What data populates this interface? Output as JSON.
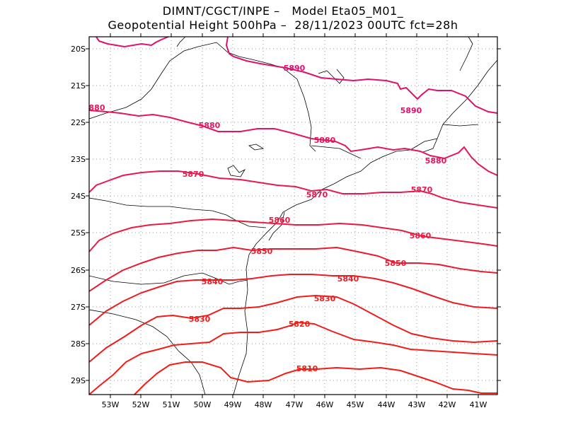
{
  "title": {
    "line1": "DIMNT/CGCT/INPE –   Model Eta05_M01_",
    "line2": "Geopotential Height 500hPa –  28/11/2023 00UTC fct=28h"
  },
  "axes": {
    "lat_labels": [
      "20S",
      "21S",
      "22S",
      "23S",
      "24S",
      "25S",
      "26S",
      "27S",
      "28S",
      "29S"
    ],
    "lon_labels": [
      "53W",
      "52W",
      "51W",
      "50W",
      "49W",
      "48W",
      "47W",
      "46W",
      "45W",
      "44W",
      "43W",
      "42W",
      "41W"
    ]
  },
  "colors": {
    "c5890": "#e0106e",
    "c5880": "#e51560",
    "c5870": "#e81850",
    "c5860": "#ea1a40",
    "c5850": "#ec1a30",
    "c5840": "#ee1b25",
    "c5830": "#f01c1c",
    "c5820": "#f21c18",
    "c5810": "#f31c14",
    "coast": "#000000",
    "grid": "#999999"
  },
  "contours": [
    {
      "level": 5890,
      "label": "5890"
    },
    {
      "level": 5880,
      "label": "5880"
    },
    {
      "level": 5870,
      "label": "5870"
    },
    {
      "level": 5860,
      "label": "5860"
    },
    {
      "level": 5850,
      "label": "5850"
    },
    {
      "level": 5840,
      "label": "5840"
    },
    {
      "level": 5830,
      "label": "5830"
    },
    {
      "level": 5820,
      "label": "5820"
    },
    {
      "level": 5810,
      "label": "5810"
    }
  ]
}
